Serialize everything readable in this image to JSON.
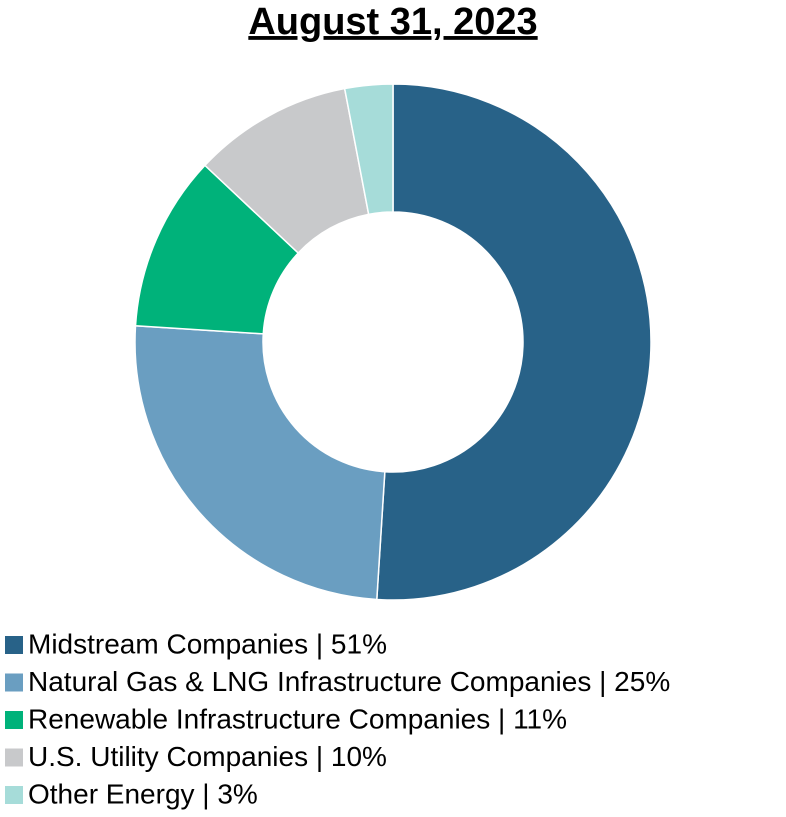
{
  "chart_data": {
    "type": "donut",
    "title": "August 31, 2023",
    "categories": [
      "Midstream Companies | 51%",
      "Natural Gas & LNG Infrastructure Companies | 25%",
      "Renewable Infrastructure Companies | 11%",
      "U.S. Utility Companies | 10%",
      "Other Energy | 3%"
    ],
    "values": [
      51,
      25,
      11,
      10,
      3
    ],
    "colors": [
      "#286288",
      "#6a9ec1",
      "#00b27a",
      "#c8c9cb",
      "#a6dcd9"
    ],
    "legend": "bottom-left"
  }
}
